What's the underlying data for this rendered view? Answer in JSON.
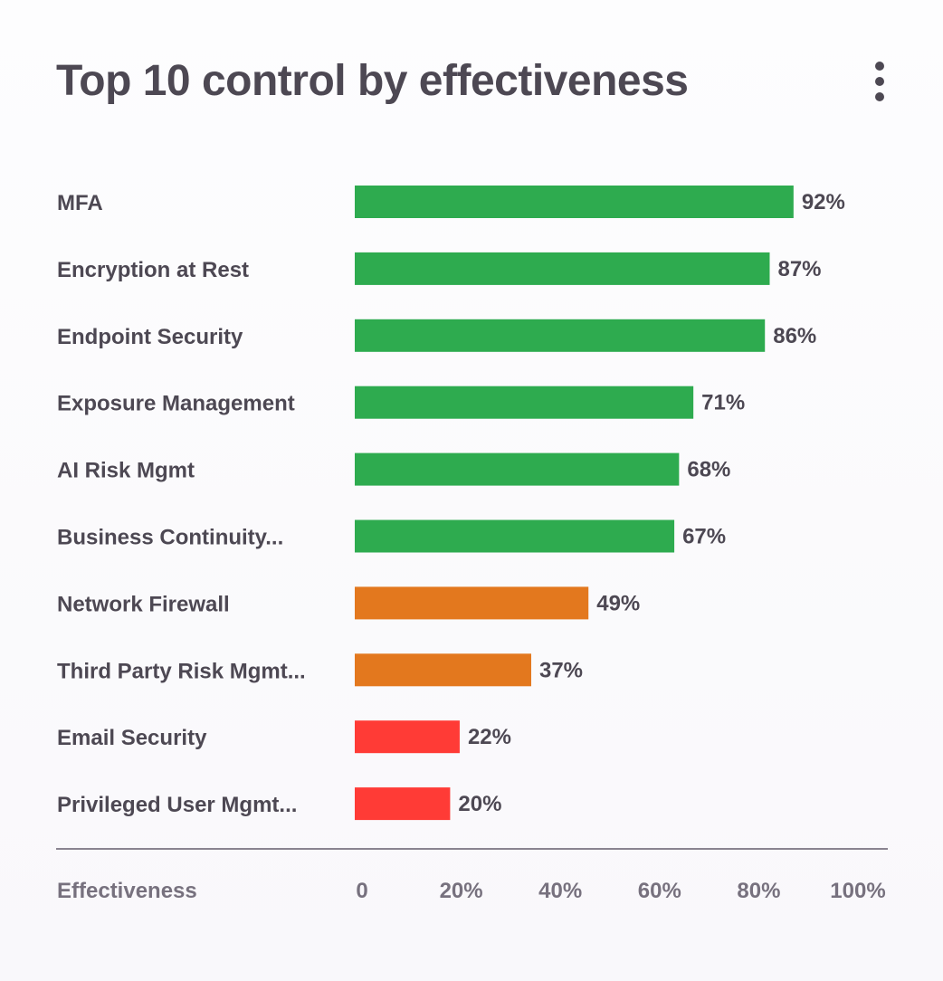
{
  "header": {
    "title": "Top 10 control by effectiveness"
  },
  "colors": {
    "high": "#2eab4f",
    "medium": "#e3781e",
    "low": "#ff3b36",
    "axis": "#8a8490"
  },
  "chart_data": {
    "type": "bar",
    "orientation": "horizontal",
    "title": "Top 10 control by effectiveness",
    "xlabel": "Effectiveness",
    "ylabel": "",
    "xlim": [
      0,
      100
    ],
    "grid": false,
    "ticks": [
      "0",
      "20%",
      "40%",
      "60%",
      "80%",
      "100%"
    ],
    "categories": [
      "MFA",
      "Encryption at Rest",
      "Endpoint Security",
      "Exposure Management",
      "AI Risk Mgmt",
      "Business Continuity...",
      "Network Firewall",
      "Third Party Risk Mgmt...",
      "Email Security",
      "Privileged User Mgmt..."
    ],
    "values": [
      92,
      87,
      86,
      71,
      68,
      67,
      49,
      37,
      22,
      20
    ],
    "value_labels": [
      "92%",
      "87%",
      "86%",
      "71%",
      "68%",
      "67%",
      "49%",
      "37%",
      "22%",
      "20%"
    ],
    "bar_colors": [
      "high",
      "high",
      "high",
      "high",
      "high",
      "high",
      "medium",
      "medium",
      "low",
      "low"
    ]
  }
}
